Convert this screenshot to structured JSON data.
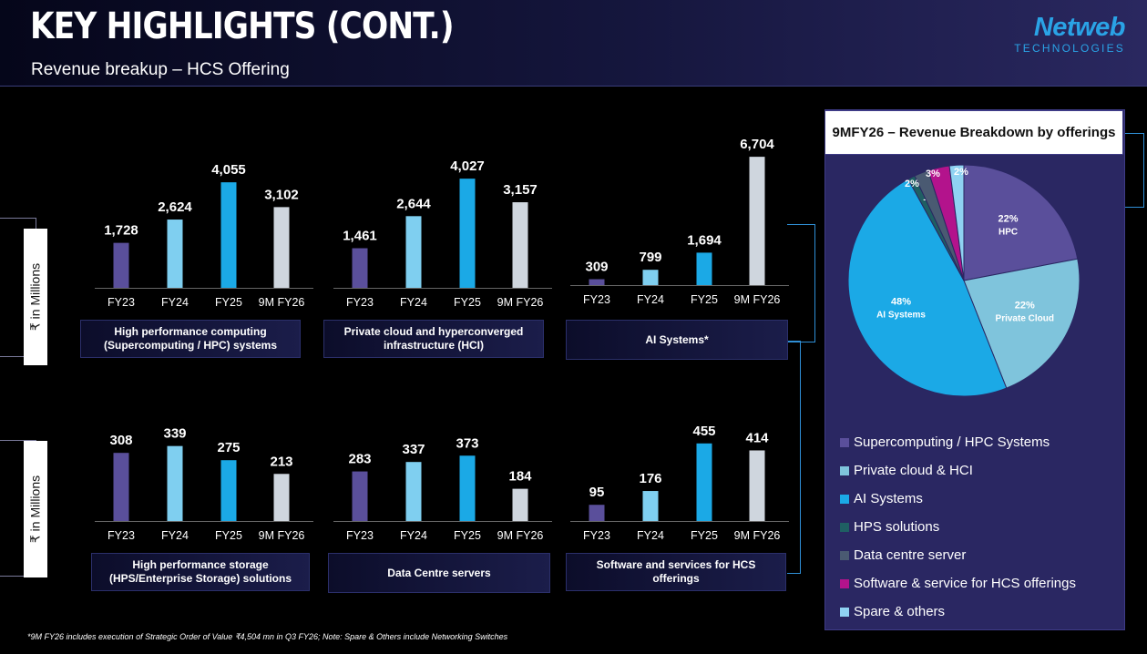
{
  "header": {
    "title": "KEY HIGHLIGHTS (CONT.)",
    "subtitle": "Revenue breakup – HCS Offering",
    "logo_main": "Netweb",
    "logo_sub": "TECHNOLOGIES"
  },
  "axis_labels": {
    "top": "₹ in Millions",
    "bottom": "₹ in Millions"
  },
  "colors": {
    "fy23": "#5a4f9b",
    "fy24": "#7fcff0",
    "fy25": "#1ba9e6",
    "fy26": "#cfd6de"
  },
  "chart_data": [
    {
      "type": "bar",
      "title": "High performance computing (Supercomputing / HPC) systems",
      "categories": [
        "FY23",
        "FY24",
        "FY25",
        "9M FY26"
      ],
      "values": [
        1728,
        2624,
        4055,
        3102
      ],
      "value_labels": [
        "1,728",
        "2,624",
        "4,055",
        "3,102"
      ],
      "ylim": [
        0,
        4200
      ]
    },
    {
      "type": "bar",
      "title": "Private cloud and hyperconverged infrastructure (HCI)",
      "categories": [
        "FY23",
        "FY24",
        "FY25",
        "9M FY26"
      ],
      "values": [
        1461,
        2644,
        4027,
        3157
      ],
      "value_labels": [
        "1,461",
        "2,644",
        "4,027",
        "3,157"
      ],
      "ylim": [
        0,
        4200
      ]
    },
    {
      "type": "bar",
      "title": "AI Systems*",
      "categories": [
        "FY23",
        "FY24",
        "FY25",
        "9M FY26"
      ],
      "values": [
        309,
        799,
        1694,
        6704
      ],
      "value_labels": [
        "309",
        "799",
        "1,694",
        "6,704"
      ],
      "ylim": [
        0,
        6900
      ]
    },
    {
      "type": "bar",
      "title": "High performance storage (HPS/Enterprise Storage) solutions",
      "categories": [
        "FY23",
        "FY24",
        "FY25",
        "9M FY26"
      ],
      "values": [
        308,
        339,
        275,
        213
      ],
      "value_labels": [
        "308",
        "339",
        "275",
        "213"
      ],
      "ylim": [
        0,
        350
      ]
    },
    {
      "type": "bar",
      "title": "Data Centre servers",
      "categories": [
        "FY23",
        "FY24",
        "FY25",
        "9M FY26"
      ],
      "values": [
        283,
        337,
        373,
        184
      ],
      "value_labels": [
        "283",
        "337",
        "373",
        "184"
      ],
      "ylim": [
        0,
        390
      ]
    },
    {
      "type": "bar",
      "title": "Software and services for HCS offerings",
      "categories": [
        "FY23",
        "FY24",
        "FY25",
        "9M FY26"
      ],
      "values": [
        95,
        176,
        455,
        414
      ],
      "value_labels": [
        "95",
        "176",
        "455",
        "414"
      ],
      "ylim": [
        0,
        470
      ]
    },
    {
      "type": "pie",
      "title": "9MFY26 – Revenue Breakdown by offerings",
      "slices": [
        {
          "name": "Supercomputing /  HPC Systems",
          "value": 22,
          "label": "22%",
          "sublabel": "HPC",
          "color": "#5a4f9b"
        },
        {
          "name": "Private cloud & HCI",
          "value": 22,
          "label": "22%",
          "sublabel": "Private Cloud",
          "color": "#7fc4dc"
        },
        {
          "name": "AI  Systems",
          "value": 48,
          "label": "48%",
          "sublabel": "AI Systems",
          "color": "#1ba9e6"
        },
        {
          "name": "HPS solutions",
          "value": 1,
          "label": "1%",
          "sublabel": "",
          "color": "#1f5f63"
        },
        {
          "name": "Data centre server",
          "value": 2,
          "label": "2%",
          "sublabel": "",
          "color": "#4a5a72"
        },
        {
          "name": "Software & service for HCS offerings",
          "value": 3,
          "label": "3%",
          "sublabel": "",
          "color": "#b3138c"
        },
        {
          "name": "Spare & others",
          "value": 2,
          "label": "2%",
          "sublabel": "",
          "color": "#8fd2f2"
        }
      ]
    }
  ],
  "captions": [
    "High performance computing (Supercomputing / HPC) systems",
    "Private cloud and hyperconverged infrastructure (HCI)",
    "AI Systems*",
    "High performance storage (HPS/Enterprise Storage) solutions",
    "Data Centre servers",
    "Software and  services for HCS offerings"
  ],
  "pie_title": "9MFY26 – Revenue Breakdown by offerings",
  "legend": [
    "Supercomputing /  HPC Systems",
    "Private cloud & HCI",
    "AI  Systems",
    "HPS solutions",
    "Data centre server",
    "Software & service for HCS offerings",
    "Spare & others"
  ],
  "footnote": "*9M FY26 includes execution of Strategic Order of Value ₹4,504 mn in Q3 FY26; Note: Spare & Others include Networking Switches"
}
